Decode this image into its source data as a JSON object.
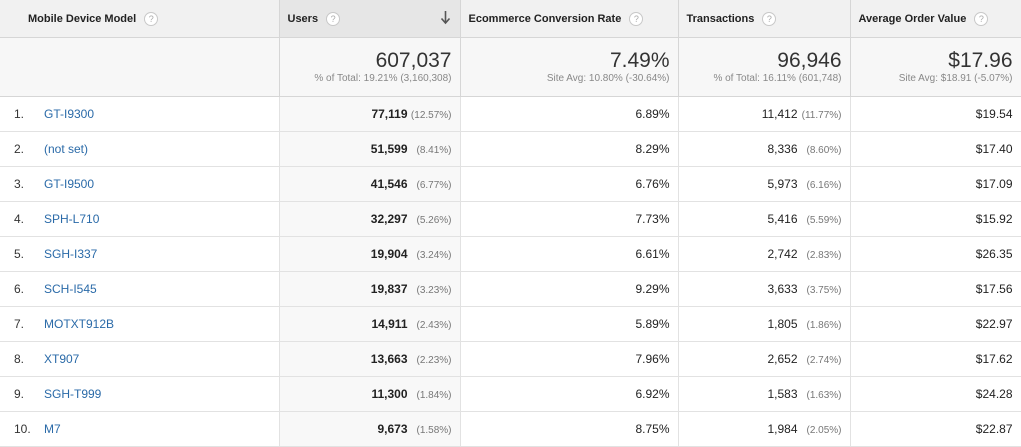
{
  "headers": {
    "dimension": "Mobile Device Model",
    "users": "Users",
    "conversion": "Ecommerce Conversion Rate",
    "transactions": "Transactions",
    "aov": "Average Order Value",
    "help_glyph": "?"
  },
  "totals": {
    "users": {
      "value": "607,037",
      "sub": "% of Total: 19.21% (3,160,308)"
    },
    "conversion": {
      "value": "7.49%",
      "sub": "Site Avg: 10.80% (-30.64%)"
    },
    "transactions": {
      "value": "96,946",
      "sub": "% of Total: 16.11% (601,748)"
    },
    "aov": {
      "value": "$17.96",
      "sub": "Site Avg: $18.91 (-5.07%)"
    }
  },
  "rows": [
    {
      "idx": "1.",
      "model": "GT-I9300",
      "users": "77,119",
      "users_pct": "(12.57%)",
      "conversion": "6.89%",
      "transactions": "11,412",
      "transactions_pct": "(11.77%)",
      "aov": "$19.54"
    },
    {
      "idx": "2.",
      "model": "(not set)",
      "users": "51,599",
      "users_pct": "(8.41%)",
      "conversion": "8.29%",
      "transactions": "8,336",
      "transactions_pct": "(8.60%)",
      "aov": "$17.40"
    },
    {
      "idx": "3.",
      "model": "GT-I9500",
      "users": "41,546",
      "users_pct": "(6.77%)",
      "conversion": "6.76%",
      "transactions": "5,973",
      "transactions_pct": "(6.16%)",
      "aov": "$17.09"
    },
    {
      "idx": "4.",
      "model": "SPH-L710",
      "users": "32,297",
      "users_pct": "(5.26%)",
      "conversion": "7.73%",
      "transactions": "5,416",
      "transactions_pct": "(5.59%)",
      "aov": "$15.92"
    },
    {
      "idx": "5.",
      "model": "SGH-I337",
      "users": "19,904",
      "users_pct": "(3.24%)",
      "conversion": "6.61%",
      "transactions": "2,742",
      "transactions_pct": "(2.83%)",
      "aov": "$26.35"
    },
    {
      "idx": "6.",
      "model": "SCH-I545",
      "users": "19,837",
      "users_pct": "(3.23%)",
      "conversion": "9.29%",
      "transactions": "3,633",
      "transactions_pct": "(3.75%)",
      "aov": "$17.56"
    },
    {
      "idx": "7.",
      "model": "MOTXT912B",
      "users": "14,911",
      "users_pct": "(2.43%)",
      "conversion": "5.89%",
      "transactions": "1,805",
      "transactions_pct": "(1.86%)",
      "aov": "$22.97"
    },
    {
      "idx": "8.",
      "model": "XT907",
      "users": "13,663",
      "users_pct": "(2.23%)",
      "conversion": "7.96%",
      "transactions": "2,652",
      "transactions_pct": "(2.74%)",
      "aov": "$17.62"
    },
    {
      "idx": "9.",
      "model": "SGH-T999",
      "users": "11,300",
      "users_pct": "(1.84%)",
      "conversion": "6.92%",
      "transactions": "1,583",
      "transactions_pct": "(1.63%)",
      "aov": "$24.28"
    },
    {
      "idx": "10.",
      "model": "M7",
      "users": "9,673",
      "users_pct": "(1.58%)",
      "conversion": "8.75%",
      "transactions": "1,984",
      "transactions_pct": "(2.05%)",
      "aov": "$22.87"
    }
  ],
  "sort": {
    "column": "users",
    "direction": "descending",
    "icon": "arrow-down-icon"
  },
  "colors": {
    "link": "#2a6aa8",
    "header_bg": "#f1f1f1",
    "border": "#d6d6d6"
  }
}
